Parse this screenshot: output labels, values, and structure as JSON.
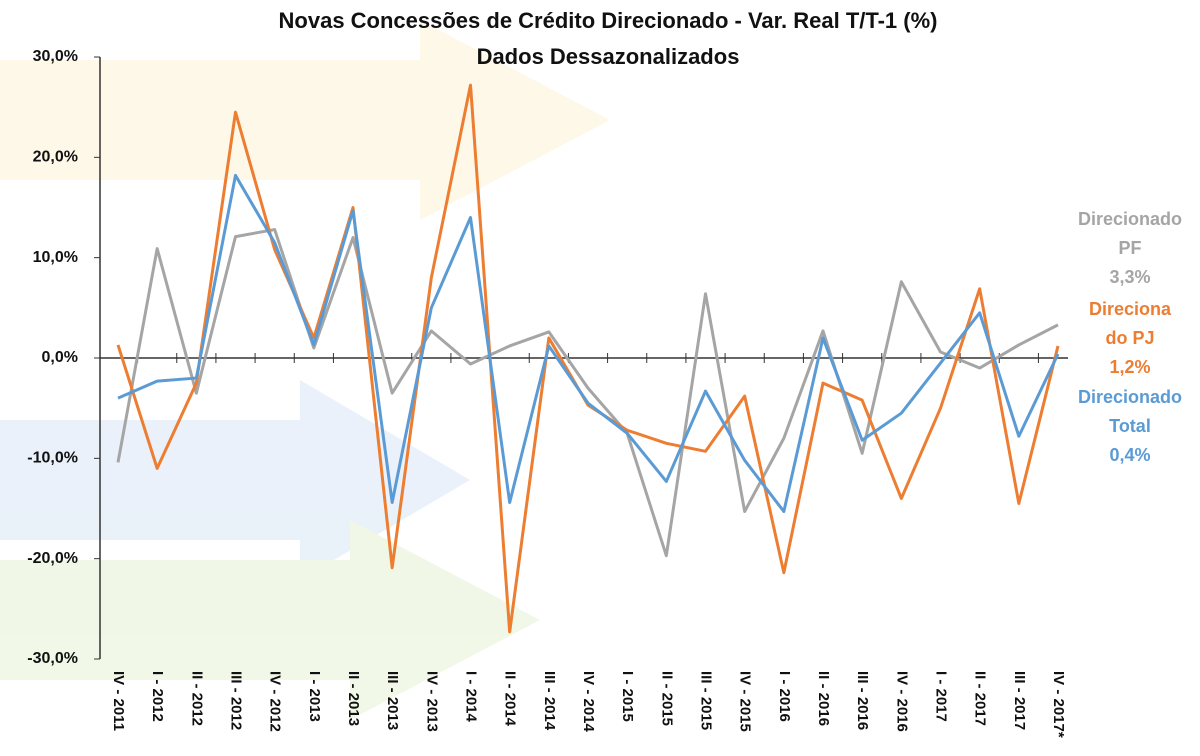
{
  "chart_data": {
    "type": "line",
    "title": "Novas Concessões de Crédito Direcionado - Var. Real T/T-1 (%)",
    "subtitle": "Dados Dessazonalizados",
    "categories": [
      "IV - 2011",
      "I - 2012",
      "II - 2012",
      "III - 2012",
      "IV - 2012",
      "I - 2013",
      "II - 2013",
      "III - 2013",
      "IV - 2013",
      "I - 2014",
      "II - 2014",
      "III - 2014",
      "IV - 2014",
      "I - 2015",
      "II - 2015",
      "III - 2015",
      "IV - 2015",
      "I - 2016",
      "II - 2016",
      "III - 2016",
      "IV - 2016",
      "I - 2017",
      "II - 2017",
      "III - 2017",
      "IV - 2017*"
    ],
    "series": [
      {
        "label_lines": [
          "Direcionado",
          "PF"
        ],
        "value_label": "3,3%",
        "color": "#a5a5a5",
        "values": [
          -10.4,
          10.9,
          -3.5,
          12.1,
          12.8,
          1.0,
          12.0,
          -3.5,
          2.7,
          -0.6,
          1.2,
          2.6,
          -3.0,
          -7.5,
          -19.7,
          6.4,
          -15.3,
          -8.0,
          2.7,
          -9.5,
          7.6,
          0.6,
          -1.0,
          1.3,
          3.3
        ]
      },
      {
        "label_lines": [
          "Direciona",
          "do PJ"
        ],
        "value_label": "1,2%",
        "color": "#ed7d31",
        "values": [
          1.3,
          -11.0,
          -2.5,
          24.5,
          10.8,
          2.0,
          15.0,
          -20.9,
          8.0,
          27.2,
          -27.3,
          2.0,
          -4.7,
          -7.2,
          -8.5,
          -9.3,
          -3.8,
          -21.4,
          -2.5,
          -4.2,
          -14.0,
          -5.0,
          6.9,
          -14.5,
          1.2
        ]
      },
      {
        "label_lines": [
          "Direcionado",
          "Total"
        ],
        "value_label": "0,4%",
        "color": "#5b9bd5",
        "values": [
          -4.0,
          -2.3,
          -2.0,
          18.2,
          11.5,
          1.3,
          14.7,
          -14.4,
          5.0,
          14.0,
          -14.4,
          1.2,
          -4.5,
          -7.5,
          -12.3,
          -3.3,
          -10.2,
          -15.3,
          2.0,
          -8.2,
          -5.5,
          -0.5,
          4.5,
          -7.8,
          0.4
        ]
      }
    ],
    "ylim": [
      -30,
      30
    ],
    "yticks": [
      {
        "value": -30,
        "label": "-30,0%"
      },
      {
        "value": -20,
        "label": "-20,0%"
      },
      {
        "value": -10,
        "label": "-10,0%"
      },
      {
        "value": 0,
        "label": "0,0%"
      },
      {
        "value": 10,
        "label": "10,0%"
      },
      {
        "value": 20,
        "label": "20,0%"
      },
      {
        "value": 30,
        "label": "30,0%"
      }
    ]
  }
}
